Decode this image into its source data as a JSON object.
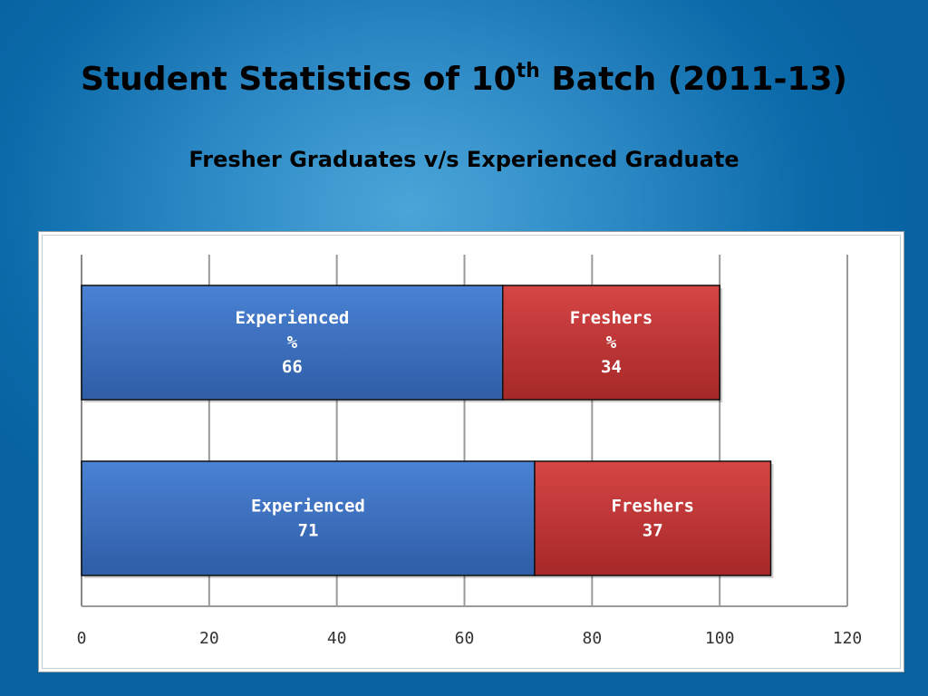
{
  "slide": {
    "title_main": "Student Statistics of 10",
    "title_sup": "th",
    "title_rest": " Batch (2011-13)",
    "subtitle": "Fresher Graduates v/s Experienced Graduate"
  },
  "chart_data": {
    "type": "bar",
    "orientation": "horizontal",
    "stacked": true,
    "xlim": [
      0,
      120
    ],
    "x_ticks": [
      "0",
      "20",
      "40",
      "60",
      "80",
      "100",
      "120"
    ],
    "grid": true,
    "legend": "none",
    "bars": [
      {
        "segments": [
          {
            "series": "Experienced",
            "value": 66,
            "label": [
              "Experienced",
              "%",
              "66"
            ]
          },
          {
            "series": "Freshers",
            "value": 34,
            "label": [
              "Freshers",
              "%",
              "34"
            ]
          }
        ]
      },
      {
        "segments": [
          {
            "series": "Experienced",
            "value": 71,
            "label": [
              "Experienced",
              "71"
            ]
          },
          {
            "series": "Freshers",
            "value": 37,
            "label": [
              "Freshers",
              "37"
            ]
          }
        ]
      }
    ],
    "colors": {
      "Experienced": "#3b6fc0",
      "Freshers": "#c93a3a"
    }
  }
}
